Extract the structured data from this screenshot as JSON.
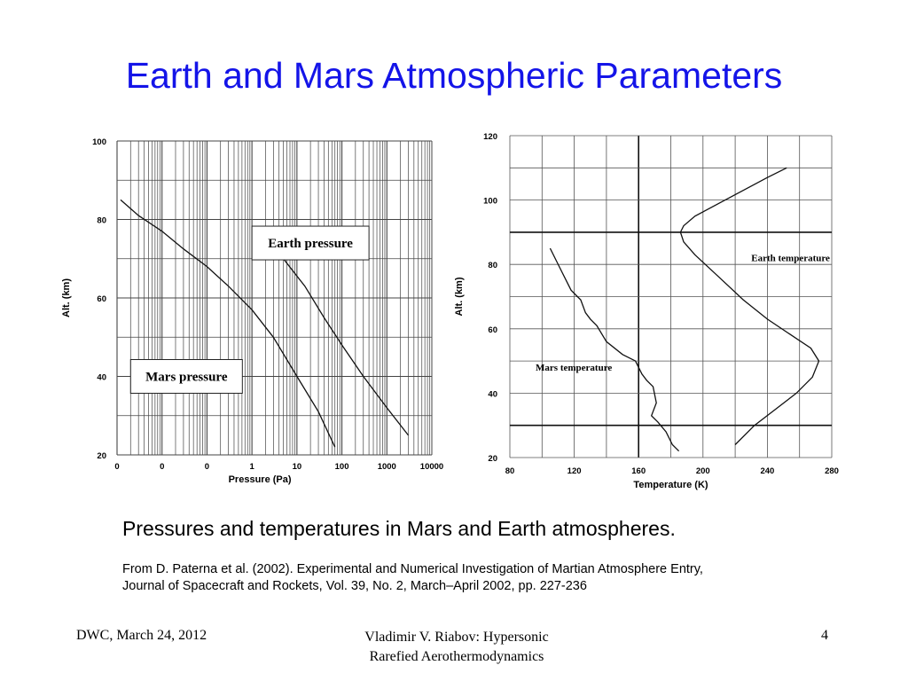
{
  "slide": {
    "title": "Earth and Mars Atmospheric Parameters",
    "caption": "Pressures and temperatures in Mars and Earth atmospheres.",
    "source_line1": "From D. Paterna et al. (2002). Experimental and Numerical Investigation of Martian Atmosphere Entry,",
    "source_line2": "Journal of Spacecraft and Rockets, Vol. 39, No. 2, March–April 2002, pp. 227-236",
    "footer_left": "DWC, March 24, 2012",
    "footer_center_line1": "Vladimir V. Riabov: Hypersonic",
    "footer_center_line2": "Rarefied Aerothermodynamics",
    "footer_right": "4",
    "title_color": "#1414e8"
  },
  "chart_data": [
    {
      "type": "line",
      "xlabel": "Pressure (Pa)",
      "ylabel": "Alt. (km)",
      "x_scale": "log",
      "xlim": [
        0.001,
        10000
      ],
      "x_ticks": [
        0.001,
        0.01,
        0.1,
        1,
        10,
        100,
        1000,
        10000
      ],
      "x_tick_labels": [
        "0",
        "0",
        "0",
        "1",
        "10",
        "100",
        "1000",
        "10000"
      ],
      "ylim": [
        20,
        100
      ],
      "y_ticks": [
        20,
        40,
        60,
        80,
        100
      ],
      "y_tick_labels": [
        "20",
        "40",
        "60",
        "80",
        "100"
      ],
      "grid": true,
      "series": [
        {
          "name": "Mars pressure",
          "x": [
            0.0012,
            0.003,
            0.01,
            0.03,
            0.1,
            0.3,
            1,
            3,
            10,
            30,
            70
          ],
          "y": [
            85,
            81,
            77,
            72.5,
            68,
            63,
            57,
            50,
            40,
            31,
            22
          ]
        },
        {
          "name": "Earth pressure",
          "x": [
            1.5,
            5,
            15,
            40,
            100,
            300,
            1000,
            3000
          ],
          "y": [
            76,
            70,
            63,
            55,
            48,
            40,
            32,
            25
          ]
        }
      ],
      "labels": [
        "Mars pressure",
        "Earth pressure"
      ]
    },
    {
      "type": "line",
      "xlabel": "Temperature (K)",
      "ylabel": "Alt. (km)",
      "xlim": [
        80,
        280
      ],
      "x_ticks": [
        80,
        120,
        160,
        200,
        240,
        280
      ],
      "x_tick_labels": [
        "80",
        "120",
        "160",
        "200",
        "240",
        "280"
      ],
      "ylim": [
        20,
        120
      ],
      "y_ticks": [
        20,
        40,
        60,
        80,
        100,
        120
      ],
      "y_tick_labels": [
        "20",
        "40",
        "60",
        "80",
        "100",
        "120"
      ],
      "grid": true,
      "series": [
        {
          "name": "Mars temperature",
          "x": [
            105,
            112,
            118,
            122,
            124,
            127,
            130,
            134,
            140,
            150,
            158,
            162,
            165,
            169,
            171,
            168,
            172,
            177,
            181,
            185
          ],
          "y": [
            85,
            78,
            72,
            70,
            69,
            65,
            63,
            61,
            56,
            52,
            50,
            46,
            44,
            42,
            37,
            33,
            31,
            28,
            24,
            22
          ]
        },
        {
          "name": "Earth temperature",
          "x": [
            252,
            240,
            225,
            210,
            195,
            188,
            186,
            188,
            195,
            210,
            225,
            240,
            255,
            267,
            272,
            268,
            258,
            245,
            232,
            220
          ],
          "y": [
            110,
            107,
            103,
            99,
            95,
            92,
            90,
            87,
            83,
            76,
            69,
            63,
            58,
            54,
            50,
            45,
            40,
            35,
            30,
            24
          ]
        }
      ],
      "labels": [
        "Earth temperature",
        "Mars temperature"
      ]
    }
  ]
}
